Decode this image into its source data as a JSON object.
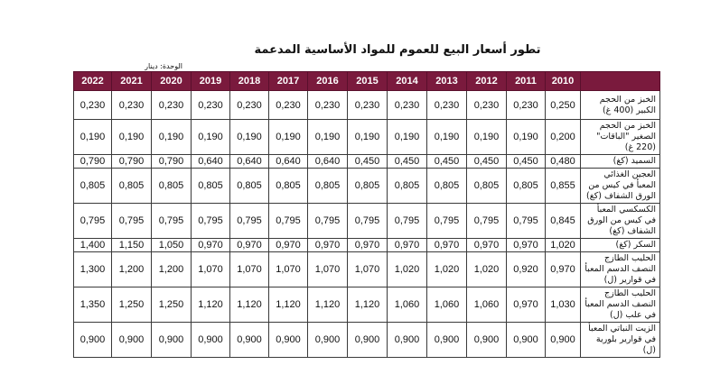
{
  "title": "تطور أسعار البيع للعموم للمواد الأساسية المدعمة",
  "unit": "الوحدة: دينار",
  "years": [
    "2022",
    "2021",
    "2020",
    "2019",
    "2018",
    "2017",
    "2016",
    "2015",
    "2014",
    "2013",
    "2012",
    "2011",
    "2010"
  ],
  "rows": [
    {
      "label": "الخبز من الحجم الكبير (400 غ)",
      "values": [
        "0,230",
        "0,230",
        "0,230",
        "0,230",
        "0,230",
        "0,230",
        "0,230",
        "0,230",
        "0,230",
        "0,230",
        "0,230",
        "0,230",
        "0,250"
      ]
    },
    {
      "label": "الخبز من الحجم الصغير \"الباقات\" (220 غ)",
      "values": [
        "0,190",
        "0,190",
        "0,190",
        "0,190",
        "0,190",
        "0,190",
        "0,190",
        "0,190",
        "0,190",
        "0,190",
        "0,190",
        "0,190",
        "0,200"
      ]
    },
    {
      "label": "السميد (كغ)",
      "values": [
        "0,790",
        "0,790",
        "0,790",
        "0,640",
        "0,640",
        "0,640",
        "0,640",
        "0,450",
        "0,450",
        "0,450",
        "0,450",
        "0,450",
        "0,480"
      ]
    },
    {
      "label": "العجين الغذائي المعبأ في كيس من الورق الشفاف (كغ)",
      "values": [
        "0,805",
        "0,805",
        "0,805",
        "0,805",
        "0,805",
        "0,805",
        "0,805",
        "0,805",
        "0,805",
        "0,805",
        "0,805",
        "0,805",
        "0,855"
      ]
    },
    {
      "label": "الكسكسي المعبأ في كيس من الورق الشفاف (كغ)",
      "values": [
        "0,795",
        "0,795",
        "0,795",
        "0,795",
        "0,795",
        "0,795",
        "0,795",
        "0,795",
        "0,795",
        "0,795",
        "0,795",
        "0,795",
        "0,845"
      ]
    },
    {
      "label": "السكر (كغ)",
      "values": [
        "1,400",
        "1,150",
        "1,050",
        "0,970",
        "0,970",
        "0,970",
        "0,970",
        "0,970",
        "0,970",
        "0,970",
        "0,970",
        "0,970",
        "1,020"
      ]
    },
    {
      "label": "الحليب الطازج النصف الدسم المعبأ في قوارير (ل)",
      "values": [
        "1,300",
        "1,200",
        "1,200",
        "1,070",
        "1,070",
        "1,070",
        "1,070",
        "1,070",
        "1,020",
        "1,020",
        "1,020",
        "0,920",
        "0,970"
      ]
    },
    {
      "label": "الحليب الطازج النصف الدسم المعبأ في علب (ل)",
      "values": [
        "1,350",
        "1,250",
        "1,250",
        "1,120",
        "1,120",
        "1,120",
        "1,120",
        "1,120",
        "1,060",
        "1,060",
        "1,060",
        "0,970",
        "1,030"
      ]
    },
    {
      "label": "الزيت النباتي المعبأ في قوارير بلورية (ل)",
      "values": [
        "0,900",
        "0,900",
        "0,900",
        "0,900",
        "0,900",
        "0,900",
        "0,900",
        "0,900",
        "0,900",
        "0,900",
        "0,900",
        "0,900",
        "0,900"
      ]
    }
  ]
}
